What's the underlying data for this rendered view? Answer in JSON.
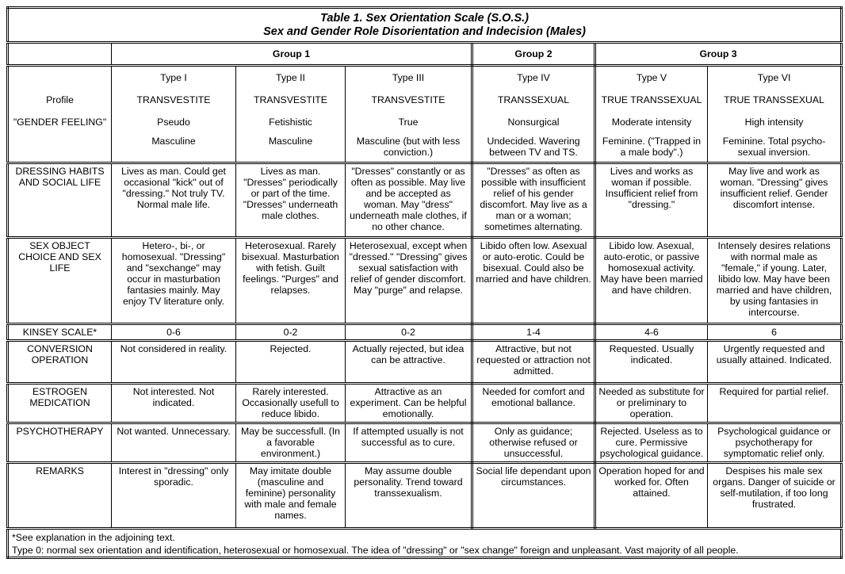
{
  "title_line1": "Table 1. Sex Orientation Scale (S.O.S.)",
  "title_line2": "Sex and Gender Role Disorientation and Indecision (Males)",
  "groups": [
    "Group 1",
    "Group 2",
    "Group 3"
  ],
  "profile_rows": [
    {
      "label": "",
      "values": [
        "Type I",
        "Type II",
        "Type III",
        "Type IV",
        "Type V",
        "Type VI"
      ]
    },
    {
      "label": "Profile",
      "values": [
        "TRANSVESTITE",
        "TRANSVESTITE",
        "TRANSVESTITE",
        "TRANSSEXUAL",
        "TRUE TRANSSEXUAL",
        "TRUE TRANSSEXUAL"
      ]
    },
    {
      "label": "\"GENDER FEELING\"",
      "values": [
        "Pseudo",
        "Fetishistic",
        "True",
        "Nonsurgical",
        "Moderate intensity",
        "High intensity"
      ]
    },
    {
      "label": "",
      "values": [
        "Masculine",
        "Masculine",
        "Masculine (but with less conviction.)",
        "Undecided. Wavering between TV and TS.",
        "Feminine. (\"Trapped in a male body\".)",
        "Feminine. Total psycho-sexual inversion."
      ]
    }
  ],
  "rows": [
    {
      "label": "DRESSING HABITS AND SOCIAL LIFE",
      "values": [
        "Lives as man. Could get occasional \"kick\" out of \"dressing.\" Not truly TV. Normal male life.",
        "Lives as man. \"Dresses\" periodically or part of the time. \"Dresses\" underneath male clothes.",
        "\"Dresses\" constantly or as often as possible. May live and be accepted as woman. May \"dress\" underneath male clothes, if no other chance.",
        "\"Dresses\" as often as possible with insufficient relief of his gender discomfort. May live as a man or a woman; sometimes alternating.",
        "Lives and works as woman if possible. Insufficient relief from \"dressing.\"",
        "May live and work as woman. \"Dressing\" gives insufficient relief. Gender discomfort intense."
      ]
    },
    {
      "label": "SEX OBJECT CHOICE AND SEX LIFE",
      "values": [
        "Hetero-, bi-, or homosexual. \"Dressing\" and \"sexchange\" may occur in masturbation fantasies mainly. May enjoy TV literature only.",
        "Heterosexual. Rarely bisexual. Masturbation with fetish. Guilt feelings. \"Purges\" and relapses.",
        "Heterosexual, except when \"dressed.\" \"Dressing\" gives sexual satisfaction with relief of gender discomfort. May \"purge\" and relapse.",
        "Libido often low. Asexual or auto-erotic. Could be bisexual. Could also be married and have children.",
        "Libido low. Asexual, auto-erotic, or passive homosexual activity. May have been married and have children.",
        "Intensely desires relations with normal male as \"female,\" if young. Later, libido low. May have been married and have children, by using fantasies in intercourse."
      ]
    },
    {
      "label": "KINSEY SCALE*",
      "values": [
        "0-6",
        "0-2",
        "0-2",
        "1-4",
        "4-6",
        "6"
      ]
    },
    {
      "label": "CONVERSION OPERATION",
      "values": [
        "Not considered in reality.",
        "Rejected.",
        "Actually rejected, but idea can be attractive.",
        "Attractive, but not requested or attraction not admitted.",
        "Requested. Usually indicated.",
        "Urgently requested and usually attained. Indicated."
      ]
    },
    {
      "label": "ESTROGEN MEDICATION",
      "values": [
        "Not interested. Not indicated.",
        "Rarely interested. Occasionally usefull to reduce libido.",
        "Attractive as an experiment. Can be helpful emotionally.",
        "Needed for comfort and emotional ballance.",
        "Needed as substitute for or preliminary to operation.",
        "Required for partial relief."
      ]
    },
    {
      "label": "PSYCHOTHERAPY",
      "values": [
        "Not wanted. Unnecessary.",
        "May be successfull. (In a favorable environment.)",
        "If attempted usually is not successful as to cure.",
        "Only as guidance; otherwise refused or unsuccessful.",
        "Rejected. Useless as to cure. Permissive psychological guidance.",
        "Psychological guidance or psychotherapy for symptomatic relief only."
      ]
    },
    {
      "label": "REMARKS",
      "values": [
        "Interest in \"dressing\" only sporadic.",
        "May imitate double (masculine and feminine) personality with male and female names.",
        "May assume double personality. Trend toward transsexualism.",
        "Social life dependant upon circumstances.",
        "Operation hoped for and worked for. Often attained.",
        "Despises his male sex organs. Danger of suicide or self-mutilation, if too long frustrated."
      ]
    }
  ],
  "footnotes": [
    "*See explanation in the adjoining text.",
    "Type 0: normal sex orientation and identification, heterosexual or homosexual. The idea of \"dressing\" or \"sex change\" foreign and unpleasant. Vast majority of all people."
  ]
}
